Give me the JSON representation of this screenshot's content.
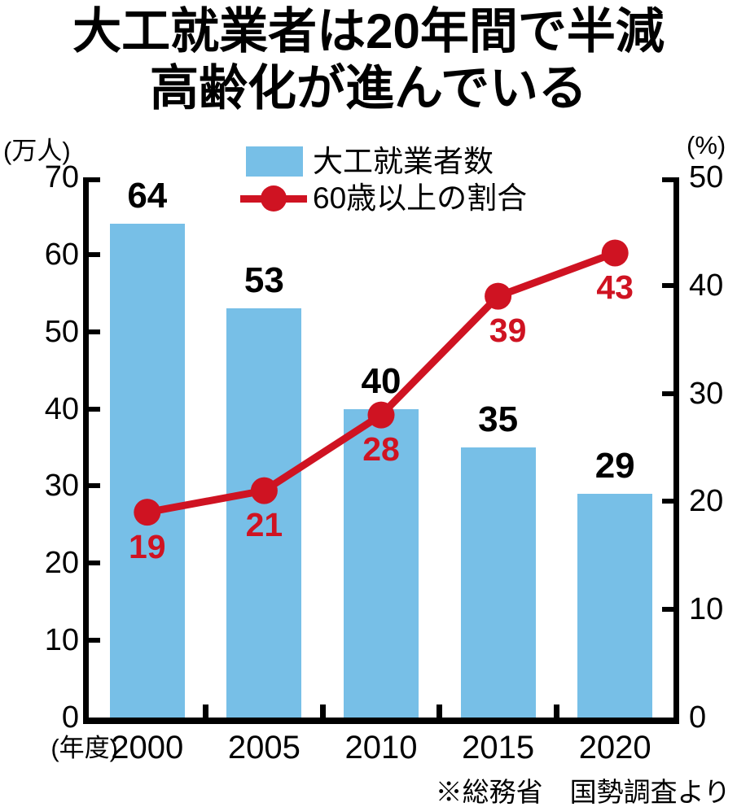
{
  "title": {
    "line1": "大工就業者は20年間で半減",
    "line2": "高齢化が進んでいる"
  },
  "legend": {
    "items": [
      {
        "label": "大工就業者数",
        "swatch": "bar"
      },
      {
        "label": "60歳以上の割合",
        "swatch": "line-dot"
      }
    ]
  },
  "axes": {
    "left": {
      "unit": "(万人)",
      "ticks": [
        70,
        60,
        50,
        40,
        30,
        20,
        10,
        0
      ]
    },
    "right": {
      "unit": "(%)",
      "ticks": [
        50,
        40,
        30,
        20,
        10,
        0
      ]
    },
    "x": {
      "prefix": "(年度)",
      "labels": [
        "2000",
        "2005",
        "2010",
        "2015",
        "2020"
      ]
    }
  },
  "source": "※総務省　国勢調査より",
  "colors": {
    "bar": "#77BFE7",
    "line": "#CF1322",
    "axis": "#000000",
    "text": "#000000"
  },
  "chart_data": {
    "type": "combo-bar-line",
    "title": "大工就業者は20年間で半減 高齢化が進んでいる",
    "categories": [
      "2000",
      "2005",
      "2010",
      "2015",
      "2020"
    ],
    "series": [
      {
        "name": "大工就業者数",
        "type": "bar",
        "axis": "left",
        "unit": "万人",
        "values": [
          64,
          53,
          40,
          35,
          29
        ],
        "color": "#77BFE7"
      },
      {
        "name": "60歳以上の割合",
        "type": "line",
        "axis": "right",
        "unit": "%",
        "values": [
          19,
          21,
          28,
          39,
          43
        ],
        "color": "#CF1322"
      }
    ],
    "xlabel": "年度",
    "left_axis": {
      "label": "万人",
      "range": [
        0,
        70
      ],
      "tick_step": 10
    },
    "right_axis": {
      "label": "%",
      "range": [
        0,
        50
      ],
      "tick_step": 10
    },
    "grid": false,
    "legend_position": "top-center",
    "source": "※総務省　国勢調査より"
  }
}
